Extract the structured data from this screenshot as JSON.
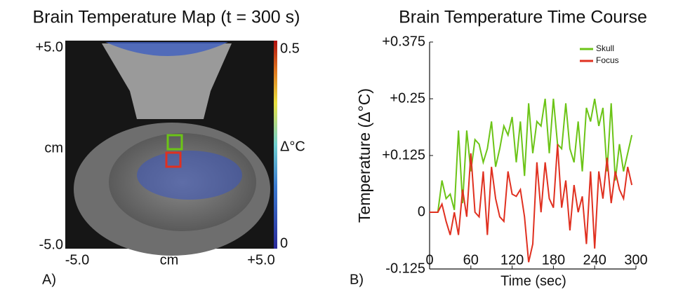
{
  "chart_data": [
    {
      "type": "image",
      "title": "Brain Temperature Map (t = 300 s)",
      "panel_label": "A)",
      "x_label": "cm",
      "y_label": "cm",
      "xlim": [
        -5,
        5
      ],
      "ylim": [
        -5,
        5
      ],
      "xticks": [
        {
          "value": -5,
          "label": "-5.0"
        },
        {
          "value": 5,
          "label": "+5.0"
        }
      ],
      "yticks": [
        {
          "value": -5,
          "label": "-5.0"
        },
        {
          "value": 5,
          "label": "+5.0"
        }
      ],
      "colorbar": {
        "label": "Δ°C",
        "lim": [
          0,
          0.5
        ],
        "ticks": [
          0,
          0.5
        ]
      }
    },
    {
      "type": "line",
      "title": "Brain Temperature Time Course",
      "panel_label": "B)",
      "x_label": "Time (sec)",
      "y_label": "Temperature (Δ°C)",
      "x": [
        0,
        6,
        12,
        18,
        24,
        30,
        36,
        42,
        48,
        54,
        60,
        66,
        72,
        78,
        84,
        90,
        96,
        102,
        108,
        114,
        120,
        126,
        132,
        138,
        144,
        150,
        156,
        162,
        168,
        174,
        180,
        186,
        192,
        198,
        204,
        210,
        216,
        222,
        228,
        234,
        240,
        246,
        252,
        258,
        264,
        270,
        276,
        282,
        288,
        294
      ],
      "series": [
        {
          "name": "Skull",
          "color": "#6cc417",
          "values": [
            0,
            0,
            0,
            0.07,
            0.03,
            0.04,
            0.005,
            0.18,
            0.02,
            0.18,
            0.09,
            0.16,
            0.15,
            0.11,
            0.14,
            0.2,
            0.1,
            0.14,
            0.19,
            0.17,
            0.21,
            0.11,
            0.2,
            0.08,
            0.24,
            0.13,
            0.2,
            0.19,
            0.25,
            0.13,
            0.25,
            0.15,
            0.14,
            0.24,
            0.14,
            0.11,
            0.2,
            0.09,
            0.23,
            0.2,
            0.25,
            0.19,
            0.23,
            0.09,
            0.24,
            0.07,
            0.15,
            0.09,
            0.13,
            0.17
          ]
        },
        {
          "name": "Focus",
          "color": "#e03020",
          "values": [
            0,
            0,
            0,
            0.018,
            -0.02,
            -0.05,
            0,
            -0.05,
            0.05,
            -0.01,
            0.13,
            0,
            -0.01,
            0.09,
            -0.05,
            0.1,
            0.03,
            -0.01,
            -0.02,
            0.09,
            0.04,
            0.035,
            0.05,
            -0.01,
            -0.11,
            -0.07,
            0.11,
            0,
            0.11,
            0.03,
            0.01,
            0.15,
            0.01,
            0.07,
            -0.04,
            0.06,
            0,
            0.035,
            -0.07,
            0.09,
            -0.08,
            0.09,
            0.03,
            0.12,
            0.02,
            0.09,
            0.05,
            0.03,
            0.1,
            0.06
          ]
        }
      ],
      "xlim": [
        0,
        300
      ],
      "xticks": [
        0,
        60,
        120,
        180,
        240,
        300
      ],
      "ylim": [
        -0.125,
        0.375
      ],
      "yticks": [
        {
          "value": -0.125,
          "label": "-0.125"
        },
        0,
        {
          "value": 0.125,
          "label": "+0.125"
        },
        {
          "value": 0.25,
          "label": "+0.25"
        },
        {
          "value": 0.375,
          "label": "+0.375"
        }
      ],
      "legend": "upper right"
    }
  ]
}
